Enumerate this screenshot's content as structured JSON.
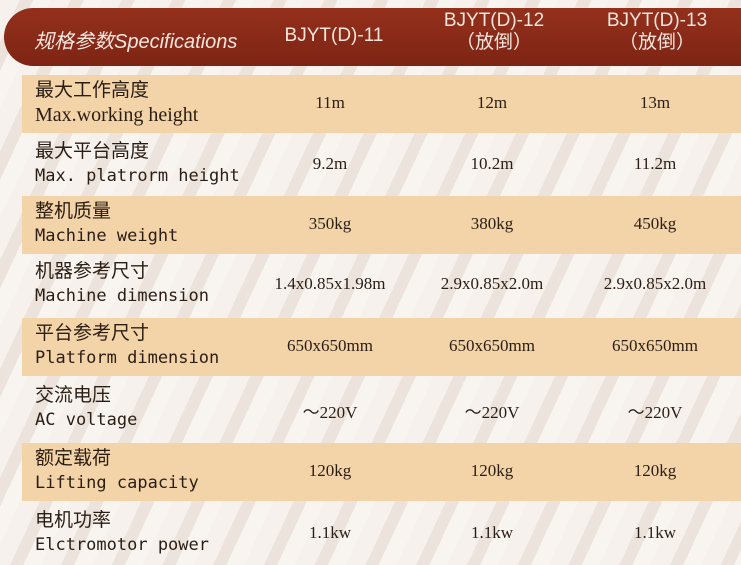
{
  "header": {
    "title": "规格参数Specifications",
    "models": [
      {
        "name": "BJYT(D)-11",
        "note": ""
      },
      {
        "name": "BJYT(D)-12",
        "note": "（放倒）"
      },
      {
        "name": "BJYT(D)-13",
        "note": "（放倒）"
      }
    ]
  },
  "rows": [
    {
      "zh": "最大工作高度",
      "en": "Max.working height",
      "values": [
        "11m",
        "12m",
        "13m"
      ]
    },
    {
      "zh": "最大平台高度",
      "en": "Max. platrorm height",
      "values": [
        "9.2m",
        "10.2m",
        "11.2m"
      ]
    },
    {
      "zh": "整机质量",
      "en": "Machine weight",
      "values": [
        "350kg",
        "380kg",
        "450kg"
      ]
    },
    {
      "zh": "机器参考尺寸",
      "en": "Machine dimension",
      "values": [
        "1.4x0.85x1.98m",
        "2.9x0.85x2.0m",
        "2.9x0.85x2.0m"
      ]
    },
    {
      "zh": "平台参考尺寸",
      "en": "Platform dimension",
      "values": [
        "650x650mm",
        "650x650mm",
        "650x650mm"
      ]
    },
    {
      "zh": "交流电压",
      "en": "AC voltage",
      "values": [
        "～220V",
        "～220V",
        "～220V"
      ]
    },
    {
      "zh": "额定载荷",
      "en": "Lifting capacity",
      "values": [
        "120kg",
        "120kg",
        "120kg"
      ]
    },
    {
      "zh": "电机功率",
      "en": "Elctromotor power",
      "values": [
        "1.1kw",
        "1.1kw",
        "1.1kw"
      ]
    }
  ],
  "colors": {
    "header": "#8b2a1a",
    "shade": "#f3d3a8"
  }
}
